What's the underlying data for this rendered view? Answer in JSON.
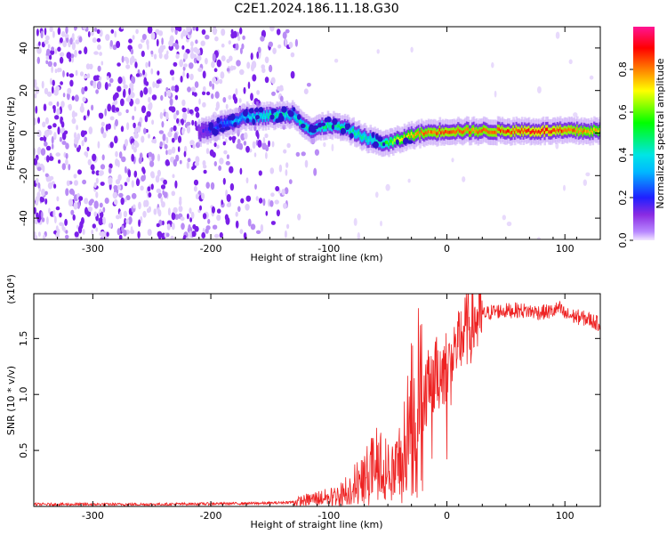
{
  "title": "C2E1.2024.186.11.18.G30",
  "chart_data": [
    {
      "type": "heatmap",
      "xlabel": "Height of straight line (km)",
      "ylabel": "Frequency (Hz)",
      "xlim": [
        -350,
        130
      ],
      "ylim": [
        -50,
        50
      ],
      "xticks": [
        -300,
        -200,
        -100,
        0,
        100
      ],
      "yticks": [
        -40,
        -20,
        0,
        20,
        40
      ],
      "colorbar": {
        "label": "Normalized spectral amplitude",
        "range": [
          0.0,
          1.0
        ],
        "ticks": [
          0.0,
          0.2,
          0.4,
          0.6,
          0.8
        ],
        "colors": [
          "#f2e6ff",
          "#8a2be2",
          "#2020ff",
          "#00e5ff",
          "#00ff00",
          "#ffff00",
          "#ff8000",
          "#ff0000",
          "#ff1493"
        ]
      },
      "ridge": {
        "x": [
          -210,
          -170,
          -150,
          -130,
          -115,
          -100,
          -85,
          -70,
          -60,
          -50,
          -40,
          -30,
          -20,
          0,
          20,
          50,
          80,
          100,
          130
        ],
        "y": [
          0,
          8,
          8,
          9,
          1,
          4,
          2,
          -2,
          -4,
          -5,
          -3,
          -1,
          0,
          1,
          1,
          1,
          1,
          1,
          1
        ],
        "amplitude": [
          0.15,
          0.35,
          0.45,
          0.4,
          0.45,
          0.5,
          0.45,
          0.45,
          0.4,
          0.55,
          0.7,
          0.75,
          0.8,
          0.85,
          0.8,
          0.85,
          0.9,
          0.85,
          0.75
        ]
      },
      "grid": false,
      "legend": "none"
    },
    {
      "type": "line",
      "xlabel": "Height of straight line (km)",
      "ylabel": "SNR (10 * v/v)",
      "scale_note": "(x10⁴)",
      "xlim": [
        -350,
        130
      ],
      "ylim": [
        0,
        1.9
      ],
      "xticks": [
        -300,
        -200,
        -100,
        0,
        100
      ],
      "yticks": [
        0.5,
        1.0,
        1.5
      ],
      "series": [
        {
          "color": "#ee2222",
          "x": [
            -350,
            -300,
            -250,
            -200,
            -150,
            -130,
            -120,
            -110,
            -100,
            -90,
            -80,
            -70,
            -60,
            -50,
            -45,
            -40,
            -35,
            -30,
            -25,
            -20,
            -15,
            -10,
            -5,
            0,
            5,
            10,
            15,
            20,
            25,
            30,
            40,
            60,
            80,
            90,
            95,
            100,
            110,
            120,
            130
          ],
          "values": [
            0.02,
            0.02,
            0.02,
            0.025,
            0.03,
            0.04,
            0.06,
            0.08,
            0.09,
            0.12,
            0.2,
            0.28,
            0.4,
            0.35,
            0.32,
            0.45,
            0.55,
            0.9,
            1.2,
            1.0,
            1.1,
            1.2,
            1.25,
            1.3,
            1.4,
            1.5,
            1.6,
            1.65,
            1.7,
            1.72,
            1.75,
            1.76,
            1.74,
            1.75,
            1.78,
            1.72,
            1.7,
            1.68,
            1.63
          ]
        }
      ],
      "grid": false,
      "legend": "none"
    }
  ]
}
